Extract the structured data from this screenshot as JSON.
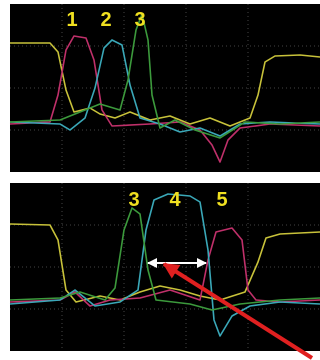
{
  "top_panel": {
    "labels": [
      "1",
      "2",
      "3"
    ]
  },
  "bottom_panel": {
    "labels": [
      "3",
      "4",
      "5"
    ]
  }
}
